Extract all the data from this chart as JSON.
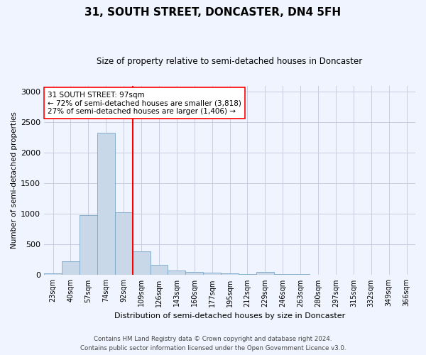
{
  "title": "31, SOUTH STREET, DONCASTER, DN4 5FH",
  "subtitle": "Size of property relative to semi-detached houses in Doncaster",
  "xlabel": "Distribution of semi-detached houses by size in Doncaster",
  "ylabel": "Number of semi-detached properties",
  "categories": [
    "23sqm",
    "40sqm",
    "57sqm",
    "74sqm",
    "92sqm",
    "109sqm",
    "126sqm",
    "143sqm",
    "160sqm",
    "177sqm",
    "195sqm",
    "212sqm",
    "229sqm",
    "246sqm",
    "263sqm",
    "280sqm",
    "297sqm",
    "315sqm",
    "332sqm",
    "349sqm",
    "366sqm"
  ],
  "values": [
    30,
    230,
    980,
    2330,
    1030,
    390,
    170,
    80,
    50,
    35,
    25,
    20,
    50,
    15,
    20,
    10,
    5,
    5,
    5,
    5,
    5
  ],
  "bar_color": "#c8d8e8",
  "bar_edge_color": "#7aa8c8",
  "property_label": "31 SOUTH STREET: 97sqm",
  "pct_smaller": 72,
  "count_smaller": 3818,
  "pct_larger": 27,
  "count_larger": 1406,
  "vline_x_index": 4.5,
  "annotation_box_color": "white",
  "annotation_box_edge": "red",
  "vline_color": "red",
  "ylim": [
    0,
    3100
  ],
  "yticks": [
    0,
    500,
    1000,
    1500,
    2000,
    2500,
    3000
  ],
  "footer_line1": "Contains HM Land Registry data © Crown copyright and database right 2024.",
  "footer_line2": "Contains public sector information licensed under the Open Government Licence v3.0.",
  "bg_color": "#f0f4ff",
  "grid_color": "#c8cce0"
}
